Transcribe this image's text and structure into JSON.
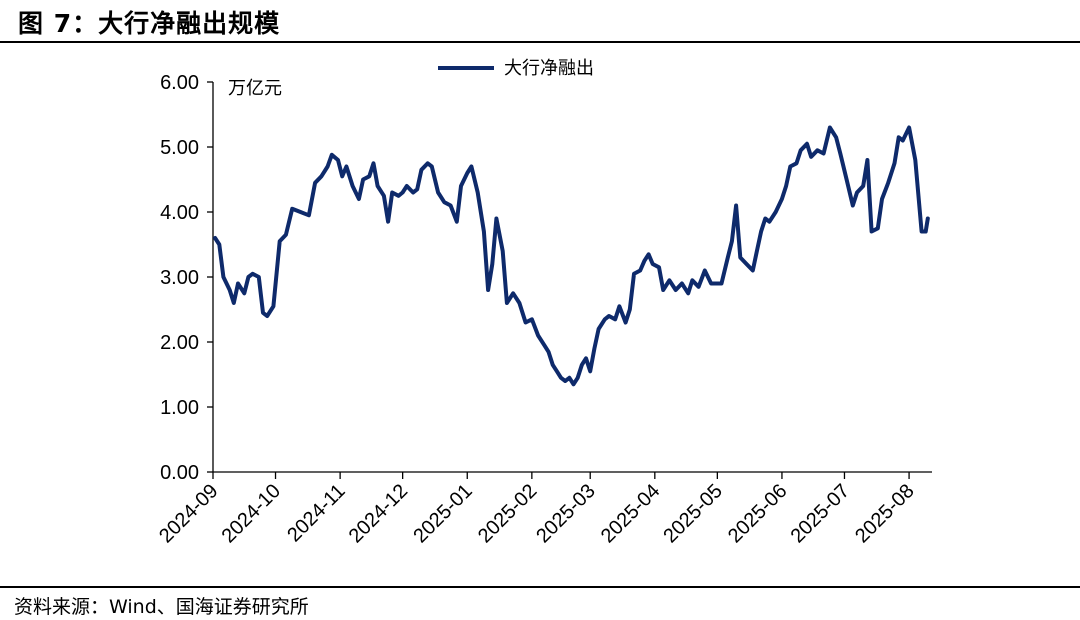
{
  "figure": {
    "label": "图 7：",
    "title": "大行净融出规模",
    "source": "资料来源：Wind、国海证券研究所"
  },
  "chart_data": {
    "type": "line",
    "title": "大行净融出规模",
    "ylabel": "万亿元",
    "ylim": [
      0,
      6
    ],
    "yticks": [
      "0.00",
      "1.00",
      "2.00",
      "3.00",
      "4.00",
      "5.00",
      "6.00"
    ],
    "xticks": [
      "2024-09",
      "2024-10",
      "2024-11",
      "2024-12",
      "2025-01",
      "2025-02",
      "2025-03",
      "2025-04",
      "2025-05",
      "2025-06",
      "2025-07",
      "2025-08"
    ],
    "legend": "top-center",
    "colors": {
      "series": "#0e2a6b"
    },
    "series": [
      {
        "name": "大行净融出",
        "points": [
          [
            "2024-09-02",
            3.6
          ],
          [
            "2024-09-04",
            3.5
          ],
          [
            "2024-09-06",
            3.0
          ],
          [
            "2024-09-09",
            2.8
          ],
          [
            "2024-09-11",
            2.6
          ],
          [
            "2024-09-13",
            2.9
          ],
          [
            "2024-09-16",
            2.75
          ],
          [
            "2024-09-18",
            3.0
          ],
          [
            "2024-09-20",
            3.05
          ],
          [
            "2024-09-23",
            3.0
          ],
          [
            "2024-09-25",
            2.45
          ],
          [
            "2024-09-27",
            2.4
          ],
          [
            "2024-09-30",
            2.55
          ],
          [
            "2024-10-03",
            3.55
          ],
          [
            "2024-10-06",
            3.65
          ],
          [
            "2024-10-09",
            4.05
          ],
          [
            "2024-10-13",
            4.0
          ],
          [
            "2024-10-17",
            3.95
          ],
          [
            "2024-10-20",
            4.45
          ],
          [
            "2024-10-23",
            4.55
          ],
          [
            "2024-10-26",
            4.7
          ],
          [
            "2024-10-28",
            4.88
          ],
          [
            "2024-10-31",
            4.8
          ],
          [
            "2024-11-02",
            4.55
          ],
          [
            "2024-11-04",
            4.7
          ],
          [
            "2024-11-07",
            4.4
          ],
          [
            "2024-11-10",
            4.2
          ],
          [
            "2024-11-12",
            4.5
          ],
          [
            "2024-11-15",
            4.55
          ],
          [
            "2024-11-17",
            4.75
          ],
          [
            "2024-11-19",
            4.4
          ],
          [
            "2024-11-22",
            4.25
          ],
          [
            "2024-11-24",
            3.85
          ],
          [
            "2024-11-26",
            4.3
          ],
          [
            "2024-11-29",
            4.25
          ],
          [
            "2024-12-01",
            4.3
          ],
          [
            "2024-12-03",
            4.4
          ],
          [
            "2024-12-06",
            4.3
          ],
          [
            "2024-12-08",
            4.35
          ],
          [
            "2024-12-10",
            4.65
          ],
          [
            "2024-12-13",
            4.75
          ],
          [
            "2024-12-15",
            4.7
          ],
          [
            "2024-12-18",
            4.3
          ],
          [
            "2024-12-21",
            4.15
          ],
          [
            "2024-12-24",
            4.1
          ],
          [
            "2024-12-27",
            3.85
          ],
          [
            "2024-12-29",
            4.4
          ],
          [
            "2025-01-01",
            4.6
          ],
          [
            "2025-01-03",
            4.7
          ],
          [
            "2025-01-06",
            4.3
          ],
          [
            "2025-01-09",
            3.7
          ],
          [
            "2025-01-11",
            2.8
          ],
          [
            "2025-01-13",
            3.2
          ],
          [
            "2025-01-15",
            3.9
          ],
          [
            "2025-01-18",
            3.4
          ],
          [
            "2025-01-20",
            2.6
          ],
          [
            "2025-01-23",
            2.75
          ],
          [
            "2025-01-26",
            2.6
          ],
          [
            "2025-01-29",
            2.3
          ],
          [
            "2025-02-01",
            2.35
          ],
          [
            "2025-02-04",
            2.1
          ],
          [
            "2025-02-07",
            1.95
          ],
          [
            "2025-02-09",
            1.85
          ],
          [
            "2025-02-11",
            1.65
          ],
          [
            "2025-02-13",
            1.55
          ],
          [
            "2025-02-15",
            1.45
          ],
          [
            "2025-02-17",
            1.4
          ],
          [
            "2025-02-19",
            1.45
          ],
          [
            "2025-02-21",
            1.35
          ],
          [
            "2025-02-23",
            1.45
          ],
          [
            "2025-02-25",
            1.65
          ],
          [
            "2025-02-27",
            1.75
          ],
          [
            "2025-03-01",
            1.55
          ],
          [
            "2025-03-03",
            1.9
          ],
          [
            "2025-03-05",
            2.2
          ],
          [
            "2025-03-08",
            2.35
          ],
          [
            "2025-03-10",
            2.4
          ],
          [
            "2025-03-13",
            2.35
          ],
          [
            "2025-03-15",
            2.55
          ],
          [
            "2025-03-18",
            2.3
          ],
          [
            "2025-03-20",
            2.5
          ],
          [
            "2025-03-22",
            3.05
          ],
          [
            "2025-03-25",
            3.1
          ],
          [
            "2025-03-27",
            3.25
          ],
          [
            "2025-03-29",
            3.35
          ],
          [
            "2025-03-31",
            3.2
          ],
          [
            "2025-04-03",
            3.15
          ],
          [
            "2025-04-05",
            2.8
          ],
          [
            "2025-04-08",
            2.95
          ],
          [
            "2025-04-11",
            2.8
          ],
          [
            "2025-04-14",
            2.9
          ],
          [
            "2025-04-17",
            2.75
          ],
          [
            "2025-04-19",
            2.95
          ],
          [
            "2025-04-22",
            2.85
          ],
          [
            "2025-04-25",
            3.1
          ],
          [
            "2025-04-28",
            2.9
          ],
          [
            "2025-05-01",
            2.9
          ],
          [
            "2025-05-03",
            2.9
          ],
          [
            "2025-05-06",
            3.3
          ],
          [
            "2025-05-08",
            3.55
          ],
          [
            "2025-05-10",
            4.1
          ],
          [
            "2025-05-12",
            3.3
          ],
          [
            "2025-05-15",
            3.2
          ],
          [
            "2025-05-18",
            3.1
          ],
          [
            "2025-05-20",
            3.4
          ],
          [
            "2025-05-22",
            3.7
          ],
          [
            "2025-05-24",
            3.9
          ],
          [
            "2025-05-26",
            3.85
          ],
          [
            "2025-05-29",
            4.0
          ],
          [
            "2025-06-01",
            4.2
          ],
          [
            "2025-06-03",
            4.4
          ],
          [
            "2025-06-05",
            4.7
          ],
          [
            "2025-06-08",
            4.75
          ],
          [
            "2025-06-10",
            4.95
          ],
          [
            "2025-06-13",
            5.05
          ],
          [
            "2025-06-15",
            4.85
          ],
          [
            "2025-06-18",
            4.95
          ],
          [
            "2025-06-21",
            4.9
          ],
          [
            "2025-06-24",
            5.3
          ],
          [
            "2025-06-27",
            5.15
          ],
          [
            "2025-06-29",
            4.9
          ],
          [
            "2025-07-02",
            4.5
          ],
          [
            "2025-07-05",
            4.1
          ],
          [
            "2025-07-07",
            4.3
          ],
          [
            "2025-07-10",
            4.4
          ],
          [
            "2025-07-12",
            4.8
          ],
          [
            "2025-07-14",
            3.7
          ],
          [
            "2025-07-17",
            3.75
          ],
          [
            "2025-07-19",
            4.2
          ],
          [
            "2025-07-22",
            4.45
          ],
          [
            "2025-07-25",
            4.75
          ],
          [
            "2025-07-27",
            5.15
          ],
          [
            "2025-07-29",
            5.1
          ],
          [
            "2025-08-01",
            5.3
          ],
          [
            "2025-08-04",
            4.8
          ],
          [
            "2025-08-07",
            3.7
          ],
          [
            "2025-08-09",
            3.7
          ],
          [
            "2025-08-10",
            3.9
          ]
        ]
      }
    ]
  }
}
